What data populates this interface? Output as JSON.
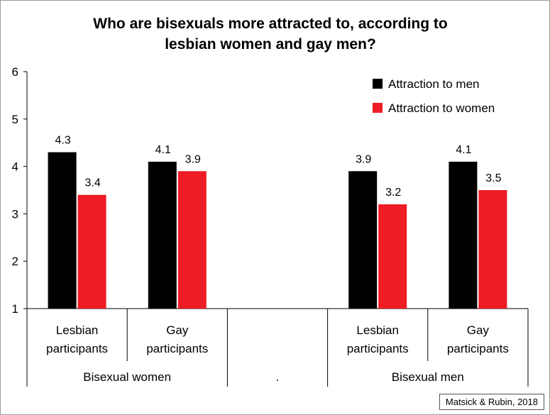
{
  "chart_data": {
    "type": "bar",
    "title_lines": [
      "Who are bisexuals more attracted to, according to",
      "lesbian women and gay men?"
    ],
    "ylim": [
      1,
      6
    ],
    "yticks": [
      1,
      2,
      3,
      4,
      5,
      6
    ],
    "grid": false,
    "legend_position": "top-right",
    "categories": [
      {
        "label_lines": [
          "Lesbian",
          "participants"
        ],
        "group": "Bisexual women"
      },
      {
        "label_lines": [
          "Gay",
          "participants"
        ],
        "group": "Bisexual women"
      },
      {
        "label_lines": [],
        "group": "."
      },
      {
        "label_lines": [
          "Lesbian",
          "participants"
        ],
        "group": "Bisexual men"
      },
      {
        "label_lines": [
          "Gay",
          "participants"
        ],
        "group": "Bisexual men"
      }
    ],
    "groups": [
      "Bisexual women",
      ".",
      "Bisexual men"
    ],
    "series": [
      {
        "name": "Attraction to men",
        "color": "#000000",
        "values": [
          4.3,
          4.1,
          null,
          3.9,
          4.1
        ],
        "labels": [
          "4.3",
          "4.1",
          "",
          "3.9",
          "4.1"
        ]
      },
      {
        "name": "Attraction to women",
        "color": "#ee1c25",
        "values": [
          3.4,
          3.9,
          null,
          3.2,
          3.5
        ],
        "labels": [
          "3.4",
          "3.9",
          "",
          "3.2",
          "3.5"
        ]
      }
    ],
    "source": "Matsick & Rubin, 2018"
  }
}
